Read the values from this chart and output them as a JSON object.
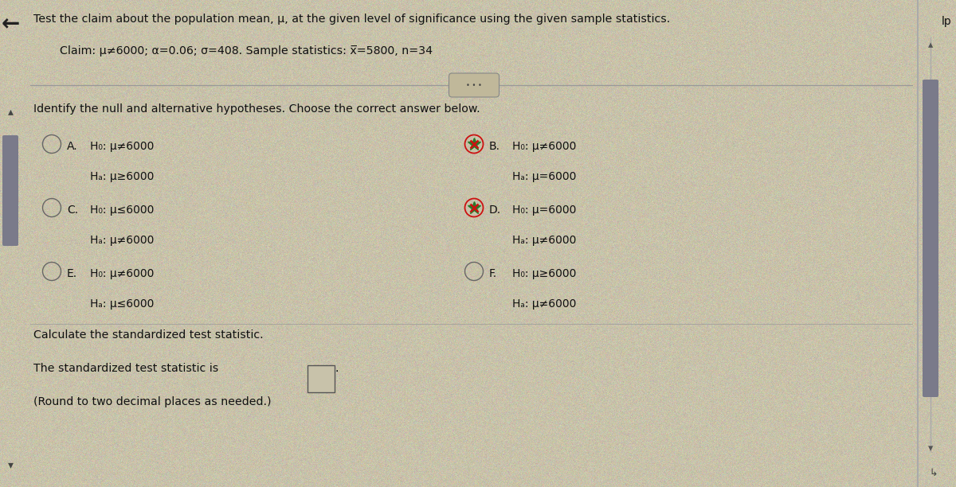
{
  "bg_color": "#c8c2aa",
  "title_line1": "Test the claim about the population mean, μ, at the given level of significance using the given sample statistics.",
  "claim_line": "Claim: μ≠6000; α=0.06; σ=408. Sample statistics: x̅=5800, n=34",
  "section_label": "Identify the null and alternative hypotheses. Choose the correct answer below.",
  "options": [
    {
      "label": "A.",
      "h0": "H₀: μ≠6000",
      "ha": "Hₐ: μ≥6000",
      "star": false,
      "col": 0,
      "row": 0
    },
    {
      "label": "B.",
      "h0": "H₀: μ≠6000",
      "ha": "Hₐ: μ=6000",
      "star": true,
      "col": 1,
      "row": 0
    },
    {
      "label": "C.",
      "h0": "H₀: μ≤6000",
      "ha": "Hₐ: μ≠6000",
      "star": false,
      "col": 0,
      "row": 1
    },
    {
      "label": "D.",
      "h0": "H₀: μ=6000",
      "ha": "Hₐ: μ≠6000",
      "star": true,
      "col": 1,
      "row": 1
    },
    {
      "label": "E.",
      "h0": "H₀: μ≠6000",
      "ha": "Hₐ: μ≤6000",
      "star": false,
      "col": 0,
      "row": 2
    },
    {
      "label": "F.",
      "h0": "H₀: μ≥6000",
      "ha": "Hₐ: μ≠6000",
      "star": false,
      "col": 1,
      "row": 2
    }
  ],
  "calc_label": "Calculate the standardized test statistic.",
  "stat_label": "The standardized test statistic is",
  "round_label": "(Round to two decimal places as needed.)",
  "text_color": "#111111",
  "circle_color": "#666666",
  "star_green": "#2a7a2a",
  "star_red": "#cc1111",
  "scrollbar_color": "#7a7a8a",
  "sep_line_color": "#999999"
}
